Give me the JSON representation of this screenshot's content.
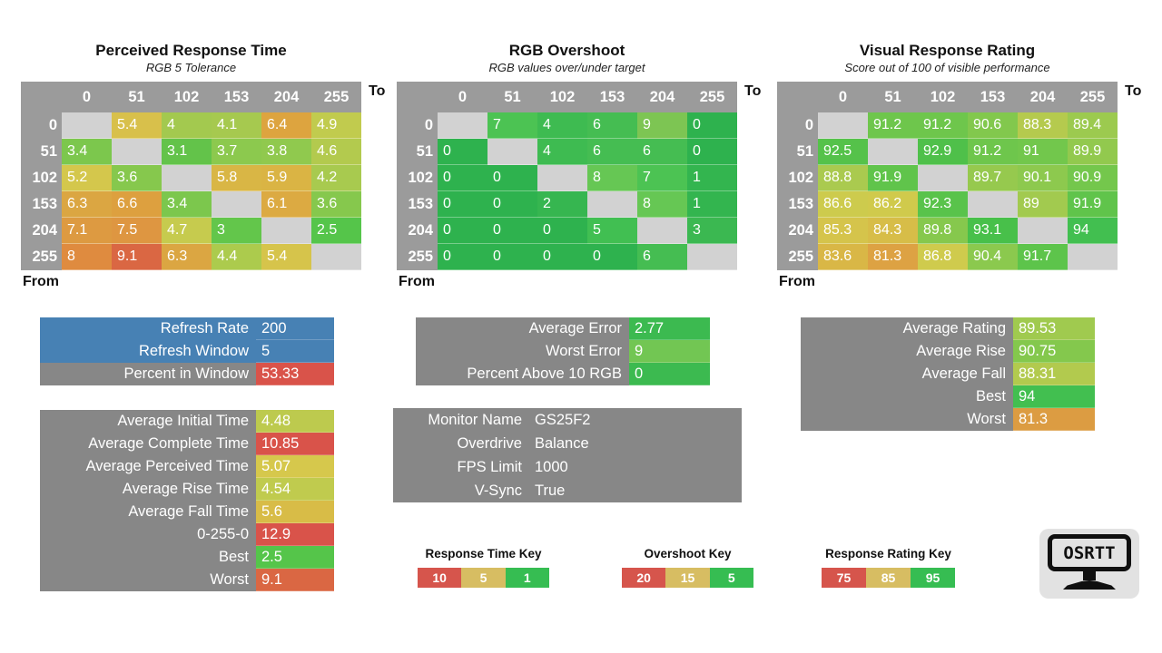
{
  "labels": {
    "to": "To",
    "from": "From"
  },
  "palette": {
    "header_bg": "#9b9b9b",
    "diagonal_bg": "#d2d2d2",
    "summary_label_bg": "#878787",
    "blue": "#4781b4",
    "red": "#d9534a"
  },
  "chart_data": [
    {
      "type": "heatmap",
      "title": "Perceived Response Time",
      "subtitle": "RGB 5 Tolerance",
      "x_label": "To",
      "y_label": "From",
      "x_ticks": [
        0,
        51,
        102,
        153,
        204,
        255
      ],
      "y_ticks": [
        0,
        51,
        102,
        153,
        204,
        255
      ],
      "values": [
        [
          null,
          5.4,
          4,
          4.1,
          6.4,
          4.9
        ],
        [
          3.4,
          null,
          3.1,
          3.7,
          3.8,
          4.6
        ],
        [
          5.2,
          3.6,
          null,
          5.8,
          5.9,
          4.2
        ],
        [
          6.3,
          6.6,
          3.4,
          null,
          6.1,
          3.6
        ],
        [
          7.1,
          7.5,
          4.7,
          3,
          null,
          2.5
        ],
        [
          8,
          9.1,
          6.3,
          4.4,
          5.4,
          null
        ]
      ],
      "colors": [
        [
          null,
          "#d8c04b",
          "#a3c94f",
          "#a6c94f",
          "#dda43f",
          "#c1cb4e"
        ],
        [
          "#7cc74d",
          null,
          "#63c34a",
          "#8cc94e",
          "#90c94e",
          "#b3ca4e"
        ],
        [
          "#d4c74c",
          "#86c84d",
          null,
          "#d9b645",
          "#dab444",
          "#a8ca4f"
        ],
        [
          "#dba642",
          "#dda03f",
          "#7cc74d",
          null,
          "#dcaa42",
          "#86c84d"
        ],
        [
          "#dd9a41",
          "#de9641",
          "#c6cb4e",
          "#63c64b",
          null,
          "#55c54a"
        ],
        [
          "#df8b3f",
          "#da6743",
          "#dba642",
          "#accb4d",
          "#d6c44b",
          null
        ]
      ]
    },
    {
      "type": "heatmap",
      "title": "RGB Overshoot",
      "subtitle": "RGB values over/under target",
      "x_label": "To",
      "y_label": "From",
      "x_ticks": [
        0,
        51,
        102,
        153,
        204,
        255
      ],
      "y_ticks": [
        0,
        51,
        102,
        153,
        204,
        255
      ],
      "values": [
        [
          null,
          7,
          4,
          6,
          9,
          0
        ],
        [
          0,
          null,
          4,
          6,
          6,
          0
        ],
        [
          0,
          0,
          null,
          8,
          7,
          1
        ],
        [
          0,
          0,
          2,
          null,
          8,
          1
        ],
        [
          0,
          0,
          0,
          5,
          null,
          3
        ],
        [
          0,
          0,
          0,
          0,
          6,
          null
        ]
      ],
      "colors": [
        [
          null,
          "#4cc353",
          "#3ebb51",
          "#45bd52",
          "#7dc553",
          "#2eb24e"
        ],
        [
          "#2eb24e",
          null,
          "#3ebb51",
          "#45bd52",
          "#45bd52",
          "#2eb24e"
        ],
        [
          "#2eb24e",
          "#2eb24e",
          null,
          "#66c754",
          "#4cc353",
          "#33b54f"
        ],
        [
          "#2eb24e",
          "#2eb24e",
          "#36b650",
          null,
          "#66c754",
          "#33b54f"
        ],
        [
          "#2eb24e",
          "#2eb24e",
          "#2eb24e",
          "#41bf52",
          null,
          "#3bb851"
        ],
        [
          "#2eb24e",
          "#2eb24e",
          "#2eb24e",
          "#2eb24e",
          "#45bd52",
          null
        ]
      ]
    },
    {
      "type": "heatmap",
      "title": "Visual Response Rating",
      "subtitle": "Score out of 100 of visible performance",
      "x_label": "To",
      "y_label": "From",
      "x_ticks": [
        0,
        51,
        102,
        153,
        204,
        255
      ],
      "y_ticks": [
        0,
        51,
        102,
        153,
        204,
        255
      ],
      "values": [
        [
          null,
          91.2,
          91.2,
          90.6,
          88.3,
          89.4
        ],
        [
          92.5,
          null,
          92.9,
          91.2,
          91,
          89.9
        ],
        [
          88.8,
          91.9,
          null,
          89.7,
          90.1,
          90.9
        ],
        [
          86.6,
          86.2,
          92.3,
          null,
          89,
          91.9
        ],
        [
          85.3,
          84.3,
          89.8,
          93.1,
          null,
          94
        ],
        [
          83.6,
          81.3,
          86.8,
          90.4,
          91.7,
          null
        ]
      ],
      "colors": [
        [
          null,
          "#6ec64c",
          "#6ec64c",
          "#82c84d",
          "#b5ca4e",
          "#9cca4f"
        ],
        [
          "#55c24a",
          null,
          "#4fc04a",
          "#6ec64c",
          "#72c74c",
          "#92c94e"
        ],
        [
          "#aaca4f",
          "#60c44b",
          null,
          "#96c94e",
          "#8dc94e",
          "#74c74c"
        ],
        [
          "#cdcb4d",
          "#d0ca4c",
          "#59c34b",
          null,
          "#a2ca4f",
          "#60c44b"
        ],
        [
          "#d5c44b",
          "#d7bd48",
          "#86c84d",
          "#48c04a",
          null,
          "#42bf50"
        ],
        [
          "#d9b746",
          "#dda243",
          "#cfcb4d",
          "#8bc94e",
          "#5dc44b",
          null
        ]
      ]
    }
  ],
  "blocks": {
    "refresh": {
      "rows": [
        {
          "label": "Refresh Rate",
          "value": "200",
          "label_bg": "#4781b4",
          "value_bg": "#4781b4"
        },
        {
          "label": "Refresh Window",
          "value": "5",
          "label_bg": "#4781b4",
          "value_bg": "#4781b4"
        },
        {
          "label": "Percent in Window",
          "value": "53.33",
          "label_bg": "#878787",
          "value_bg": "#d9534a"
        }
      ]
    },
    "times": {
      "label_bg": "#878787",
      "rows": [
        {
          "label": "Average Initial Time",
          "value": "4.48",
          "value_bg": "#bdca4e"
        },
        {
          "label": "Average Complete Time",
          "value": "10.85",
          "value_bg": "#d9534a"
        },
        {
          "label": "Average Perceived Time",
          "value": "5.07",
          "value_bg": "#d6c84c"
        },
        {
          "label": "Average Rise Time",
          "value": "4.54",
          "value_bg": "#c0cb4e"
        },
        {
          "label": "Average Fall Time",
          "value": "5.6",
          "value_bg": "#d8bc47"
        },
        {
          "label": "0-255-0",
          "value": "12.9",
          "value_bg": "#d9534a"
        },
        {
          "label": "Best",
          "value": "2.5",
          "value_bg": "#55c54a"
        },
        {
          "label": "Worst",
          "value": "9.1",
          "value_bg": "#da6743"
        }
      ]
    },
    "error": {
      "label_bg": "#878787",
      "rows": [
        {
          "label": "Average Error",
          "value": "2.77",
          "value_bg": "#3cba50"
        },
        {
          "label": "Worst Error",
          "value": "9",
          "value_bg": "#72c653"
        },
        {
          "label": "Percent Above 10 RGB",
          "value": "0",
          "value_bg": "#3cba50"
        }
      ]
    },
    "monitor": {
      "bg": "#878787",
      "label_bg": "transparent",
      "rows": [
        {
          "label": "Monitor Name",
          "value": "GS25F2"
        },
        {
          "label": "Overdrive",
          "value": "Balance"
        },
        {
          "label": "FPS Limit",
          "value": "1000"
        },
        {
          "label": "V-Sync",
          "value": "True"
        }
      ]
    },
    "rating": {
      "label_bg": "#878787",
      "rows": [
        {
          "label": "Average Rating",
          "value": "89.53",
          "value_bg": "#a0ca4f"
        },
        {
          "label": "Average Rise",
          "value": "90.75",
          "value_bg": "#84c84d"
        },
        {
          "label": "Average Fall",
          "value": "88.31",
          "value_bg": "#b2ca4e"
        },
        {
          "label": "Best",
          "value": "94",
          "value_bg": "#42bf50"
        },
        {
          "label": "Worst",
          "value": "81.3",
          "value_bg": "#dc9c42"
        }
      ]
    }
  },
  "keys": [
    {
      "title": "Response Time Key",
      "segments": [
        {
          "label": "10",
          "color": "#d6554c"
        },
        {
          "label": "5",
          "color": "#d7bd62"
        },
        {
          "label": "1",
          "color": "#36bd52"
        }
      ]
    },
    {
      "title": "Overshoot Key",
      "segments": [
        {
          "label": "20",
          "color": "#d6554c"
        },
        {
          "label": "15",
          "color": "#d7bd62"
        },
        {
          "label": "5",
          "color": "#36bd52"
        }
      ]
    },
    {
      "title": "Response Rating Key",
      "segments": [
        {
          "label": "75",
          "color": "#d6554c"
        },
        {
          "label": "85",
          "color": "#d7bd62"
        },
        {
          "label": "95",
          "color": "#36bd52"
        }
      ]
    }
  ],
  "logo": {
    "text": "OSRTT"
  }
}
